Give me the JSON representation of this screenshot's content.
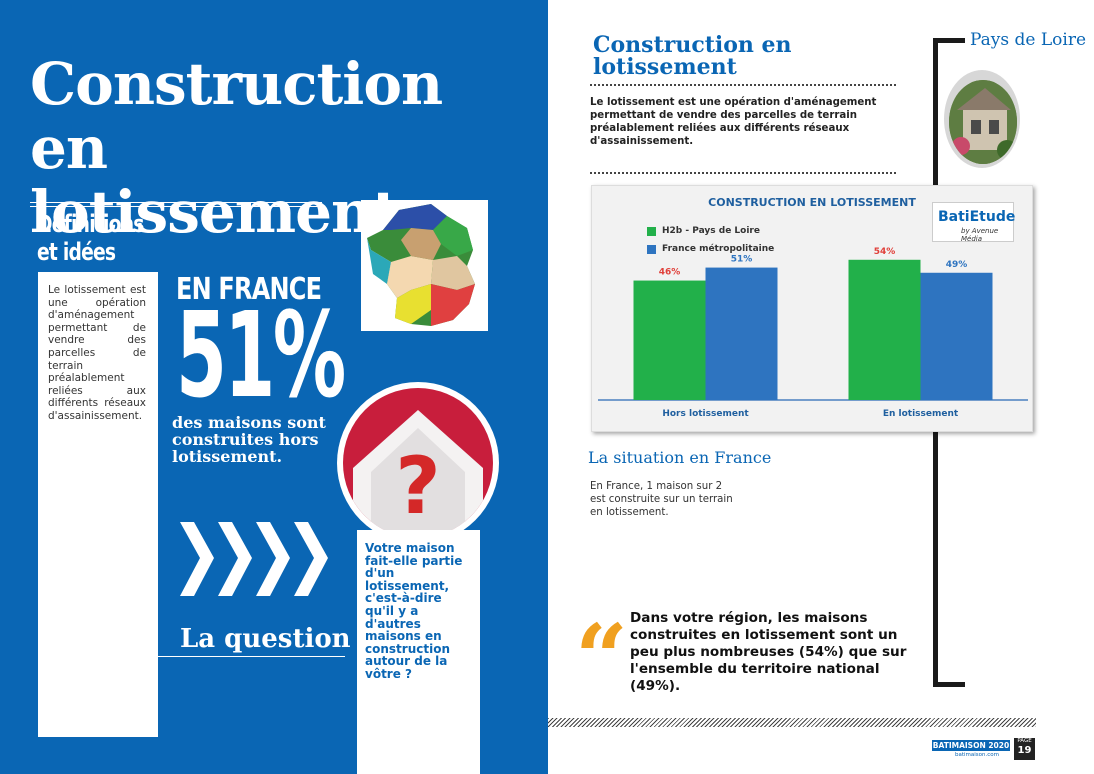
{
  "left": {
    "title_line1": "Construction en",
    "title_line2": "lotissement",
    "definitions_line1": "Définitions",
    "definitions_line2": "et idées",
    "definition_text": "Le lotissement est une opération d'aménagement permettant de vendre des parcelles de terrain préalablement reliées aux différents réseaux d'assainissement.",
    "en_france": "EN FRANCE",
    "big_percent": "51%",
    "percent_caption": "des maisons sont construites hors lotissement.",
    "question_text": "Votre maison fait-elle partie d'un lotissement, c'est-à-dire qu'il y a d'autres maisons en construction autour de la vôtre ?",
    "question_label": "La question",
    "question_mark": "?"
  },
  "right": {
    "title_line1": "Construction en",
    "title_line2": "lotissement",
    "intro": "Le lotissement est une opération d'aménagement permettant de vendre des parcelles de terrain préalablement reliées aux différents réseaux d'assainissement.",
    "region": "Pays de Loire",
    "situation_title": "La situation en France",
    "situation_text": "En France, 1 maison sur 2 est construite sur un terrain en lotissement.",
    "quote": "Dans votre région, les maisons construites en lotissement sont un peu plus nombreuses (54%) que sur l'ensemble du territoire national (49%).",
    "quote_mark": "“",
    "logo_text": "BatiEtude",
    "logo_sub": "by Avenue Média"
  },
  "footer": {
    "brand": "BATIMAISON 2020",
    "url": "batimaison.com",
    "page_label": "PAGE",
    "page_number": "19"
  },
  "colors": {
    "page_blue": "#0a66b4",
    "green_series": "#22b04a",
    "blue_series": "#2e74c0",
    "quote_orange": "#f0a020"
  },
  "chart_data": {
    "type": "bar",
    "title": "CONSTRUCTION EN LOTISSEMENT",
    "categories": [
      "Hors lotissement",
      "En lotissement"
    ],
    "series": [
      {
        "name": "H2b - Pays de Loire",
        "values": [
          46,
          54
        ],
        "labels": [
          "46%",
          "54%"
        ],
        "color": "#22b04a"
      },
      {
        "name": "France métropolitaine",
        "values": [
          51,
          49
        ],
        "labels": [
          "51%",
          "49%"
        ],
        "color": "#2e74c0"
      }
    ],
    "ylim": [
      0,
      60
    ],
    "legend": "top-left",
    "grid": false
  }
}
